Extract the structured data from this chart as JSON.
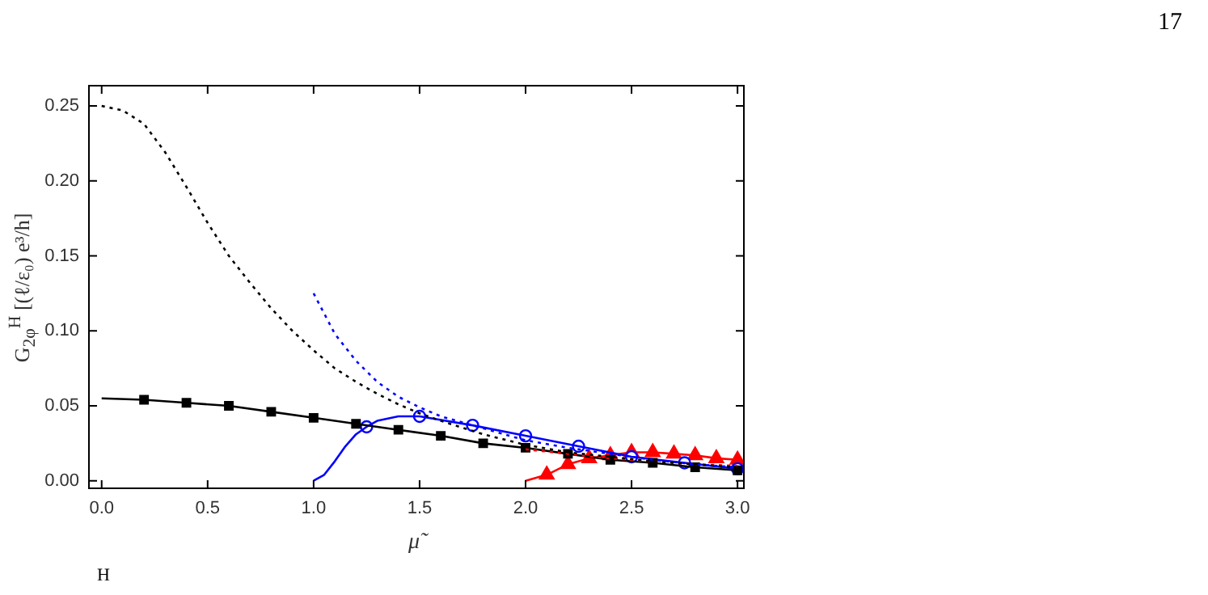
{
  "chart_data": {
    "type": "line",
    "xlabel": "μ̃",
    "ylabel": "G$_{2φ}$$^{H}$ [(ℓ/ε₀) e³/h]",
    "xlim": [
      -0.06,
      3.03
    ],
    "ylim": [
      -0.005,
      0.2635
    ],
    "xticks": [
      {
        "value": 0,
        "label": "0.0"
      },
      {
        "value": 0.5,
        "label": "0.5"
      },
      {
        "value": 1,
        "label": "1.0"
      },
      {
        "value": 1.5,
        "label": "1.5"
      },
      {
        "value": 2,
        "label": "2.0"
      },
      {
        "value": 2.5,
        "label": "2.5"
      },
      {
        "value": 3,
        "label": "3.0"
      }
    ],
    "yticks": [
      {
        "value": 0,
        "label": "0.00"
      },
      {
        "value": 0.05,
        "label": "0.05"
      },
      {
        "value": 0.1,
        "label": "0.10"
      },
      {
        "value": 0.15,
        "label": "0.15"
      },
      {
        "value": 0.2,
        "label": "0.20"
      },
      {
        "value": 0.25,
        "label": "0.25"
      }
    ],
    "grid": false,
    "legend": false,
    "annotations": [
      "17",
      "H"
    ],
    "series": [
      {
        "color": "#000000",
        "line_style": "dotted",
        "marker": "none",
        "x": [
          0,
          0.1,
          0.2,
          0.3,
          0.4,
          0.5,
          0.6,
          0.7,
          0.8,
          0.9,
          1.0,
          1.1,
          1.2,
          1.3,
          1.4,
          1.5,
          1.6,
          1.8,
          2.0,
          2.2,
          2.4,
          2.6,
          2.8,
          3.0
        ],
        "values": [
          0.25,
          0.247,
          0.238,
          0.219,
          0.196,
          0.172,
          0.15,
          0.132,
          0.115,
          0.1,
          0.087,
          0.075,
          0.066,
          0.058,
          0.051,
          0.045,
          0.04,
          0.031,
          0.024,
          0.019,
          0.016,
          0.013,
          0.011,
          0.009
        ]
      },
      {
        "color": "#0000ff",
        "line_style": "dotted",
        "marker": "none",
        "x": [
          1.0,
          1.1,
          1.2,
          1.3,
          1.4,
          1.5,
          1.6,
          1.8,
          2.0,
          2.2,
          2.4,
          2.6,
          2.8,
          3.0
        ],
        "values": [
          0.125,
          0.098,
          0.08,
          0.066,
          0.056,
          0.049,
          0.043,
          0.035,
          0.027,
          0.022,
          0.018,
          0.014,
          0.011,
          0.009
        ]
      },
      {
        "color": "#ff0000",
        "line_style": "dotted",
        "marker": "none",
        "x": [
          2.0,
          2.2,
          2.4,
          2.6,
          2.8,
          3.0
        ],
        "values": [
          0.021,
          0.018,
          0.015,
          0.013,
          0.011,
          0.01
        ]
      },
      {
        "color": "#000000",
        "line_style": "solid",
        "marker": "none",
        "x": [
          0,
          0.2,
          0.4,
          0.6,
          0.8,
          1.0,
          1.2,
          1.4,
          1.6,
          1.8,
          2.0,
          2.2,
          2.4,
          2.6,
          2.8,
          3.0
        ],
        "values": [
          0.055,
          0.054,
          0.052,
          0.05,
          0.046,
          0.042,
          0.038,
          0.034,
          0.03,
          0.025,
          0.022,
          0.018,
          0.014,
          0.012,
          0.009,
          0.007
        ]
      },
      {
        "type": "scatter",
        "color": "#000000",
        "marker": "square",
        "x": [
          0.2,
          0.4,
          0.6,
          0.8,
          1.0,
          1.2,
          1.4,
          1.6,
          1.8,
          2.0,
          2.2,
          2.4,
          2.6,
          2.8,
          3.0
        ],
        "values": [
          0.054,
          0.052,
          0.05,
          0.046,
          0.042,
          0.038,
          0.034,
          0.03,
          0.025,
          0.022,
          0.018,
          0.014,
          0.012,
          0.009,
          0.007
        ]
      },
      {
        "color": "#0000ff",
        "line_style": "solid",
        "marker": "none",
        "x": [
          1.0,
          1.05,
          1.1,
          1.15,
          1.2,
          1.25,
          1.3,
          1.4,
          1.5,
          1.75,
          2.0,
          2.25,
          2.5,
          2.75,
          3.0
        ],
        "values": [
          0,
          0.004,
          0.013,
          0.023,
          0.031,
          0.036,
          0.04,
          0.043,
          0.043,
          0.037,
          0.03,
          0.023,
          0.016,
          0.012,
          0.008
        ]
      },
      {
        "type": "scatter",
        "color": "#0000ff",
        "marker": "circle",
        "x": [
          1.25,
          1.5,
          1.75,
          2.0,
          2.25,
          2.5,
          2.75,
          3.0
        ],
        "values": [
          0.036,
          0.043,
          0.037,
          0.03,
          0.023,
          0.016,
          0.012,
          0.008
        ]
      },
      {
        "color": "#ff0000",
        "line_style": "solid",
        "marker": "none",
        "x": [
          2.0,
          2.05,
          2.1,
          2.2,
          2.3,
          2.4,
          2.5,
          2.6,
          2.7,
          2.8,
          2.9,
          3.0
        ],
        "values": [
          0,
          0.002,
          0.004,
          0.011,
          0.015,
          0.017,
          0.019,
          0.019,
          0.018,
          0.017,
          0.015,
          0.014
        ]
      },
      {
        "type": "scatter",
        "color": "#ff0000",
        "marker": "triangle",
        "x": [
          2.1,
          2.2,
          2.3,
          2.4,
          2.5,
          2.6,
          2.7,
          2.8,
          2.9,
          3.0
        ],
        "values": [
          0.004,
          0.011,
          0.015,
          0.017,
          0.019,
          0.019,
          0.018,
          0.017,
          0.015,
          0.014
        ]
      }
    ]
  }
}
